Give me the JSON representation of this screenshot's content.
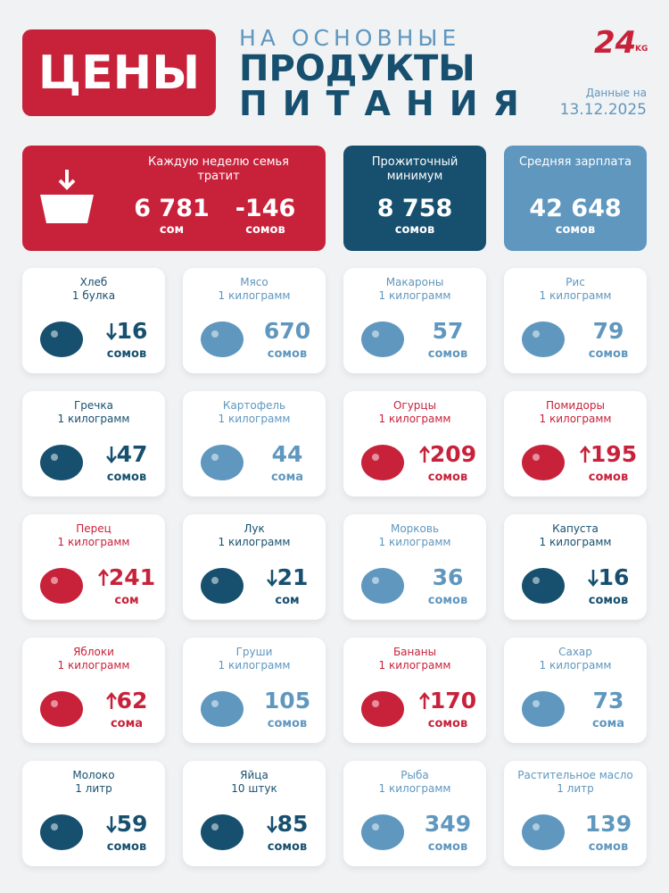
{
  "header": {
    "badge": "ЦЕНЫ",
    "title_line1": "НА ОСНОВНЫЕ",
    "title_line2": "ПРОДУКТЫ",
    "title_line3": "ПИТАНИЯ",
    "logo": "24",
    "logo_suffix": "KG",
    "date_label": "Данные на",
    "date": "13.12.2025"
  },
  "summary": [
    {
      "label": "Каждую неделю семья тратит",
      "values": [
        {
          "value": "6 781",
          "unit": "сом"
        },
        {
          "value": "-146",
          "unit": "сомов"
        }
      ],
      "color": "#c8223b"
    },
    {
      "label": "Прожиточный минимум",
      "values": [
        {
          "value": "8 758",
          "unit": "сомов"
        }
      ],
      "color": "#17506f"
    },
    {
      "label": "Средняя зарплата",
      "values": [
        {
          "value": "42 648",
          "unit": "сомов"
        }
      ],
      "color": "#5f97bf"
    }
  ],
  "items": [
    {
      "name": "Хлеб",
      "unit": "1 булка",
      "value": "16",
      "currency": "сомов",
      "trend": "down",
      "color": "#17506f"
    },
    {
      "name": "Мясо",
      "unit": "1 килограмм",
      "value": "670",
      "currency": "сомов",
      "trend": "none",
      "color": "#5f97bf"
    },
    {
      "name": "Макароны",
      "unit": "1 килограмм",
      "value": "57",
      "currency": "сомов",
      "trend": "none",
      "color": "#5f97bf"
    },
    {
      "name": "Рис",
      "unit": "1 килограмм",
      "value": "79",
      "currency": "сомов",
      "trend": "none",
      "color": "#5f97bf"
    },
    {
      "name": "Гречка",
      "unit": "1 килограмм",
      "value": "47",
      "currency": "сомов",
      "trend": "down",
      "color": "#17506f"
    },
    {
      "name": "Картофель",
      "unit": "1 килограмм",
      "value": "44",
      "currency": "сома",
      "trend": "none",
      "color": "#5f97bf"
    },
    {
      "name": "Огурцы",
      "unit": "1 килограмм",
      "value": "209",
      "currency": "сомов",
      "trend": "up",
      "color": "#c8223b"
    },
    {
      "name": "Помидоры",
      "unit": "1 килограмм",
      "value": "195",
      "currency": "сомов",
      "trend": "up",
      "color": "#c8223b"
    },
    {
      "name": "Перец",
      "unit": "1 килограмм",
      "value": "241",
      "currency": "сом",
      "trend": "up",
      "color": "#c8223b"
    },
    {
      "name": "Лук",
      "unit": "1 килограмм",
      "value": "21",
      "currency": "сом",
      "trend": "down",
      "color": "#17506f"
    },
    {
      "name": "Морковь",
      "unit": "1 килограмм",
      "value": "36",
      "currency": "сомов",
      "trend": "none",
      "color": "#5f97bf"
    },
    {
      "name": "Капуста",
      "unit": "1 килограмм",
      "value": "16",
      "currency": "сомов",
      "trend": "down",
      "color": "#17506f"
    },
    {
      "name": "Яблоки",
      "unit": "1 килограмм",
      "value": "62",
      "currency": "сома",
      "trend": "up",
      "color": "#c8223b"
    },
    {
      "name": "Груши",
      "unit": "1 килограмм",
      "value": "105",
      "currency": "сомов",
      "trend": "none",
      "color": "#5f97bf"
    },
    {
      "name": "Бананы",
      "unit": "1 килограмм",
      "value": "170",
      "currency": "сомов",
      "trend": "up",
      "color": "#c8223b"
    },
    {
      "name": "Сахар",
      "unit": "1 килограмм",
      "value": "73",
      "currency": "сома",
      "trend": "none",
      "color": "#5f97bf"
    },
    {
      "name": "Молоко",
      "unit": "1 литр",
      "value": "59",
      "currency": "сомов",
      "trend": "down",
      "color": "#17506f"
    },
    {
      "name": "Яйца",
      "unit": "10 штук",
      "value": "85",
      "currency": "сомов",
      "trend": "down",
      "color": "#17506f"
    },
    {
      "name": "Рыба",
      "unit": "1 килограмм",
      "value": "349",
      "currency": "сомов",
      "trend": "none",
      "color": "#5f97bf"
    },
    {
      "name": "Растительное масло",
      "unit": "1 литр",
      "value": "139",
      "currency": "сомов",
      "trend": "none",
      "color": "#5f97bf"
    }
  ]
}
